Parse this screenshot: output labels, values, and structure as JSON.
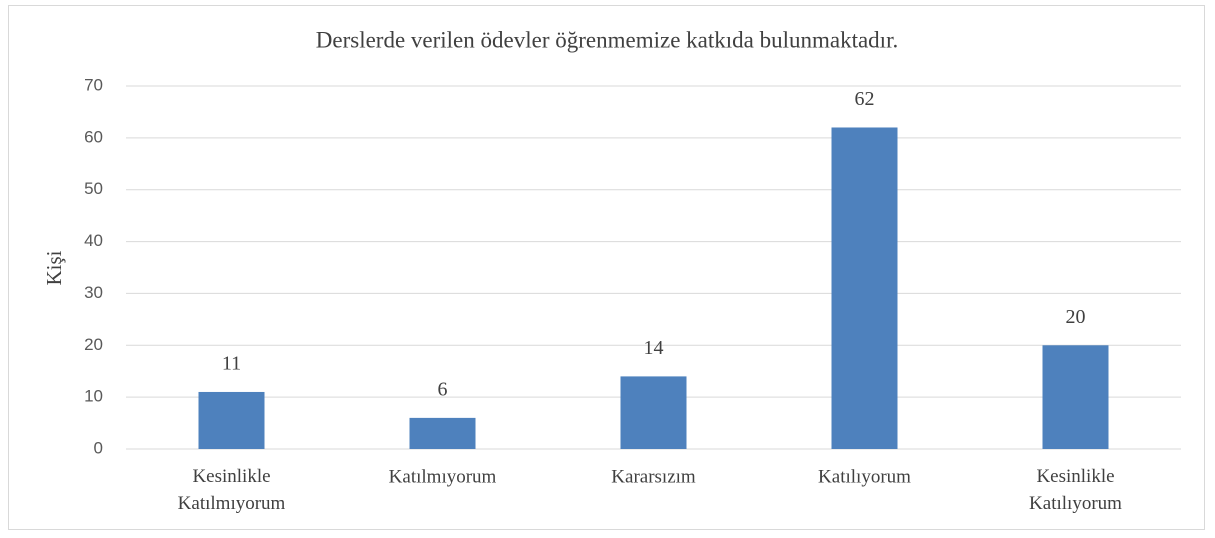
{
  "chart_data": {
    "type": "bar",
    "title": "Derslerde verilen ödevler öğrenmemize katkıda bulunmaktadır.",
    "y_label": "Kişi",
    "categories": [
      "Kesinlikle Katılmıyorum",
      "Katılmıyorum",
      "Kararsızım",
      "Katılıyorum",
      "Kesinlikle Katılıyorum"
    ],
    "values": [
      11,
      6,
      14,
      62,
      20
    ],
    "color": "#4e81bd",
    "ylim": [
      0,
      70
    ],
    "yticks": [
      0,
      10,
      20,
      30,
      40,
      50,
      60,
      70
    ],
    "grid": true
  }
}
